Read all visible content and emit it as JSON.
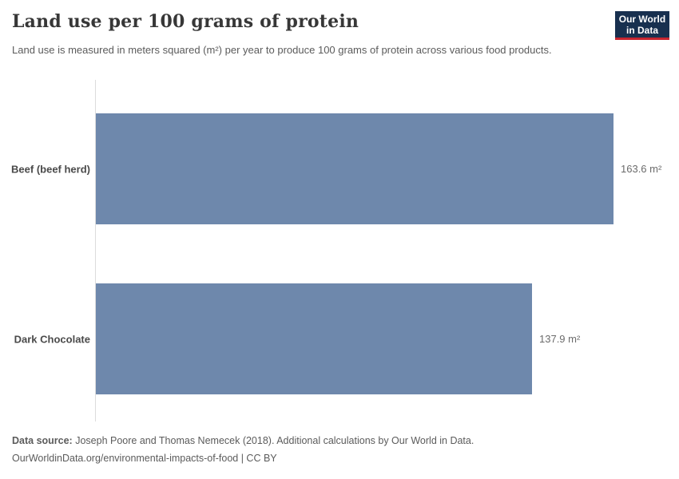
{
  "header": {
    "title": "Land use per 100 grams of protein",
    "subtitle": "Land use is measured in meters squared (m²) per year to produce 100 grams of protein across various food products.",
    "logo": {
      "line1": "Our World",
      "line2": "in Data"
    }
  },
  "chart_data": {
    "type": "bar",
    "orientation": "horizontal",
    "title": "Land use per 100 grams of protein",
    "xlabel": "",
    "ylabel": "",
    "unit": "m²",
    "xlim": [
      0,
      163.6
    ],
    "grid": false,
    "legend": false,
    "categories": [
      "Beef (beef herd)",
      "Dark Chocolate"
    ],
    "values": [
      163.6,
      137.9
    ],
    "value_labels": [
      "163.6 m²",
      "137.9 m²"
    ],
    "bar_color": "#6e88ac"
  },
  "footer": {
    "source_label": "Data source:",
    "source_text": " Joseph Poore and Thomas Nemecek (2018). Additional calculations by Our World in Data.",
    "citation_link": "OurWorldinData.org/environmental-impacts-of-food",
    "citation_suffix": " | CC BY"
  },
  "colors": {
    "bar": "#6e88ac",
    "logo_bg": "#18304f",
    "logo_accent": "#c7252f",
    "axis_line": "#dcdcdc",
    "title_text": "#373737",
    "body_text": "#5b5b5b"
  }
}
